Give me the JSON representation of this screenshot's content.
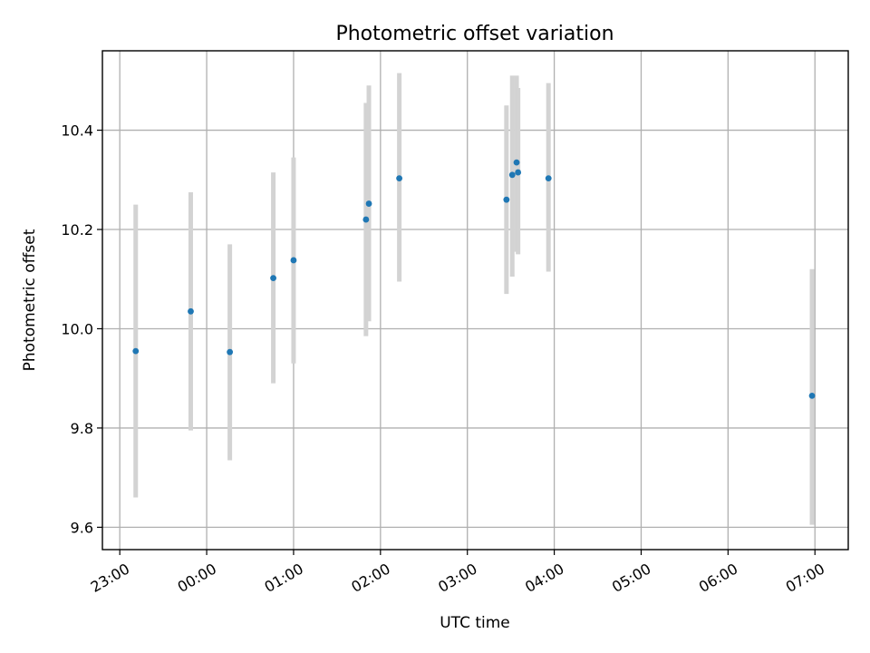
{
  "chart_data": {
    "type": "scatter",
    "title": "Photometric offset variation",
    "xlabel": "UTC time",
    "ylabel": "Photometric offset",
    "xlim": [
      "22:48",
      "07:23"
    ],
    "ylim": [
      9.555,
      10.56
    ],
    "grid": true,
    "x_ticks": [
      "23:00",
      "00:00",
      "01:00",
      "02:00",
      "03:00",
      "04:00",
      "05:00",
      "06:00",
      "07:00"
    ],
    "y_ticks": [
      9.6,
      9.8,
      10.0,
      10.2,
      10.4
    ],
    "y_tick_labels": [
      "9.6",
      "9.8",
      "10.0",
      "10.2",
      "10.4"
    ],
    "marker_color": "#1f77b4",
    "errorbar_color": "#d3d3d3",
    "points": [
      {
        "x": "23:11",
        "y": 9.955,
        "low": 9.66,
        "high": 10.25
      },
      {
        "x": "23:49",
        "y": 10.035,
        "low": 9.795,
        "high": 10.275
      },
      {
        "x": "00:16",
        "y": 9.953,
        "low": 9.735,
        "high": 10.17
      },
      {
        "x": "00:46",
        "y": 10.102,
        "low": 9.89,
        "high": 10.315
      },
      {
        "x": "01:00",
        "y": 10.138,
        "low": 9.93,
        "high": 10.345
      },
      {
        "x": "01:50",
        "y": 10.22,
        "low": 9.985,
        "high": 10.455
      },
      {
        "x": "01:52",
        "y": 10.252,
        "low": 10.015,
        "high": 10.49
      },
      {
        "x": "02:13",
        "y": 10.303,
        "low": 10.095,
        "high": 10.515
      },
      {
        "x": "03:27",
        "y": 10.26,
        "low": 10.07,
        "high": 10.45
      },
      {
        "x": "03:31",
        "y": 10.31,
        "low": 10.105,
        "high": 10.51
      },
      {
        "x": "03:34",
        "y": 10.335,
        "low": 10.155,
        "high": 10.51
      },
      {
        "x": "03:35",
        "y": 10.315,
        "low": 10.15,
        "high": 10.485
      },
      {
        "x": "03:56",
        "y": 10.303,
        "low": 10.115,
        "high": 10.495
      },
      {
        "x": "06:58",
        "y": 9.865,
        "low": 9.605,
        "high": 10.12
      }
    ]
  }
}
